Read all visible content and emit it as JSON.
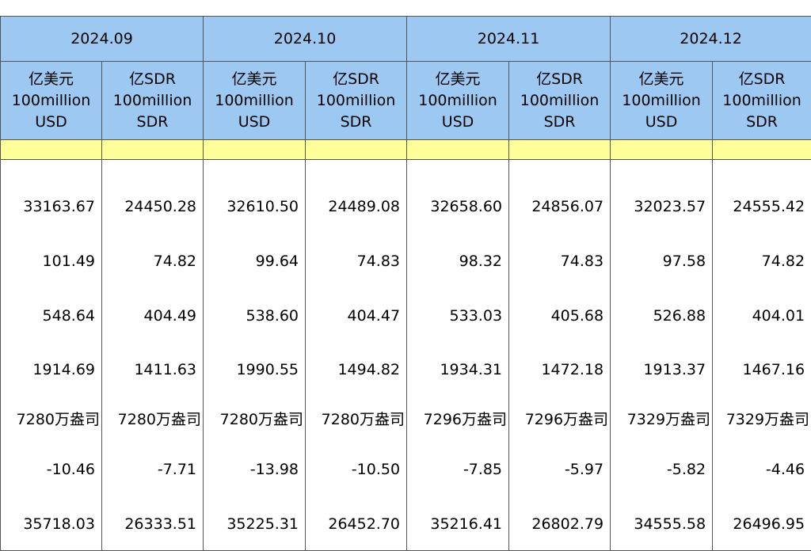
{
  "months": [
    "2024.09",
    "2024.10",
    "2024.11",
    "2024.12"
  ],
  "units": {
    "usd": [
      "亿美元",
      "100million",
      "USD"
    ],
    "sdr": [
      "亿SDR",
      "100million",
      "SDR"
    ]
  },
  "rows": [
    [
      "33163.67",
      "24450.28",
      "32610.50",
      "24489.08",
      "32658.60",
      "24856.07",
      "32023.57",
      "24555.42"
    ],
    [
      "101.49",
      "74.82",
      "99.64",
      "74.83",
      "98.32",
      "74.83",
      "97.58",
      "74.82"
    ],
    [
      "548.64",
      "404.49",
      "538.60",
      "404.47",
      "533.03",
      "405.68",
      "526.88",
      "404.01"
    ],
    [
      "1914.69",
      "1411.63",
      "1990.55",
      "1494.82",
      "1934.31",
      "1472.18",
      "1913.37",
      "1467.16"
    ],
    [
      "7280万盎司",
      "7280万盎司",
      "7280万盎司",
      "7280万盎司",
      "7296万盎司",
      "7296万盎司",
      "7329万盎司",
      "7329万盎司"
    ],
    [
      "-10.46",
      "-7.71",
      "-13.98",
      "-10.50",
      "-7.85",
      "-5.97",
      "-5.82",
      "-4.46"
    ],
    [
      "35718.03",
      "26333.51",
      "35225.31",
      "26452.70",
      "35216.41",
      "26802.79",
      "34555.58",
      "26496.95"
    ]
  ],
  "colors": {
    "header_bg": "#9cc8f2",
    "band_bg": "#ffff99"
  }
}
